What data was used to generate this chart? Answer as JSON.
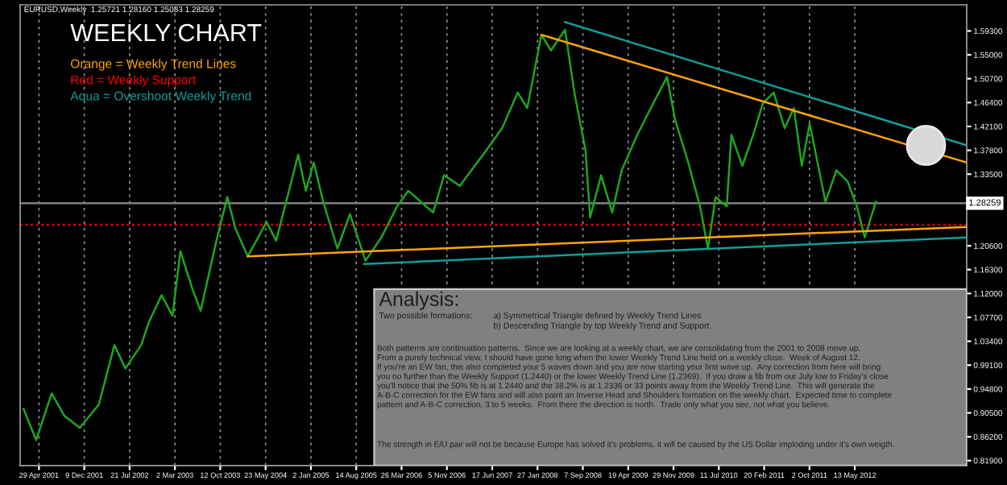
{
  "chart_data": {
    "type": "line",
    "title": "WEEKLY CHART",
    "annotations": [
      "EURUSD,Weekly  1.25721 1.28160 1.25083 1.28259",
      "Orange = Weekly Trend Lines",
      "Red = Weekly Support",
      "Aqua = Overshoot Weekly Trend",
      "Analysis:",
      "Two possible formations:",
      "a) Symmetrical Triangle defined by Weekly Trend Lines\nb) Descending Triangle by top Weekly Trend and Support",
      "Both patterns are continuation patterns.  Since we are looking at a weekly chart, we are consolidating from the 2001 to 2008 move up.\nFrom a purely technical view, I should have gone long when the lower Weekly Trend Line held on a weekly close.  Week of August 12.\nIf you're an EW fan, this also completed your 5 waves down and you are now starting your first wave up.  Any correction from here will bring\nyou no further than the Weekly Support (1.2440) or the lower Weekly Trend Line (1.2369).  If you draw a fib from our July low to Friday's close\nyou'll notice that the 50% fib is at 1.2440 and the 38.2% is at 1.2336 or 33 points away from the Weekly Trend Line.  This will generate the\nA-B-C correction for the EW fans and will also paint an Inverse Head and Shoulders formation on the weekly chart.  Expected time to complete\npattern and A-B-C correction, 3 to 5 weeks.  From there the direction is north.  Trade only what you see, not what you believe.",
      "The strength in E/U pair will not be because Europe has solved it's problems, it will be caused by the US Dollar imploding under it's own weigth."
    ],
    "series": [
      {
        "color": "#1fa51f",
        "x": [
          "2001-02-12",
          "2001-04-15",
          "2001-07-01",
          "2001-09-01",
          "2001-11-17",
          "2002-02-19",
          "2002-05-07",
          "2002-06-30",
          "2002-09-16",
          "2002-10-25",
          "2002-12-26",
          "2003-02-18",
          "2003-03-29",
          "2003-05-30",
          "2003-07-07",
          "2003-09-23",
          "2003-11-16",
          "2003-12-25",
          "2004-02-25",
          "2004-05-28",
          "2004-07-14",
          "2004-09-22",
          "2004-10-31",
          "2004-12-08",
          "2005-01-16",
          "2005-03-04",
          "2005-05-13",
          "2005-07-14",
          "2005-09-29",
          "2005-12-16",
          "2006-03-04",
          "2006-04-28",
          "2006-08-29",
          "2006-10-22",
          "2007-01-08",
          "2007-05-19",
          "2007-08-05",
          "2007-10-21",
          "2007-12-07",
          "2008-02-15",
          "2008-04-02",
          "2008-06-11",
          "2008-07-27",
          "2008-09-20",
          "2008-10-13",
          "2008-12-06",
          "2009-01-30",
          "2009-03-18",
          "2009-06-03",
          "2009-08-20",
          "2009-10-28",
          "2009-12-06",
          "2010-02-06",
          "2010-04-09",
          "2010-05-18",
          "2010-06-25",
          "2010-08-19",
          "2010-09-11",
          "2010-11-04",
          "2010-12-28",
          "2011-02-13",
          "2011-04-08",
          "2011-06-01",
          "2011-07-17",
          "2011-08-25",
          "2011-10-03",
          "2011-12-20",
          "2012-02-12",
          "2012-04-07",
          "2012-05-23",
          "2012-07-01",
          "2012-08-25"
        ],
        "values": [
          0.912,
          0.856,
          0.94,
          0.9,
          0.878,
          0.92,
          1.027,
          0.985,
          1.027,
          1.069,
          1.117,
          1.08,
          1.196,
          1.125,
          1.089,
          1.215,
          1.294,
          1.238,
          1.187,
          1.249,
          1.215,
          1.314,
          1.37,
          1.305,
          1.356,
          1.285,
          1.201,
          1.263,
          1.179,
          1.221,
          1.277,
          1.305,
          1.266,
          1.333,
          1.314,
          1.378,
          1.418,
          1.482,
          1.454,
          1.586,
          1.558,
          1.595,
          1.482,
          1.378,
          1.257,
          1.333,
          1.266,
          1.342,
          1.406,
          1.462,
          1.51,
          1.434,
          1.361,
          1.277,
          1.201,
          1.294,
          1.277,
          1.406,
          1.35,
          1.406,
          1.462,
          1.482,
          1.418,
          1.454,
          1.35,
          1.426,
          1.285,
          1.342,
          1.322,
          1.277,
          1.221,
          1.285
        ]
      },
      {
        "color": "#ffa500",
        "x": [
          "2008-02-15",
          "2013-11-17"
        ],
        "values": [
          1.586,
          1.356
        ]
      },
      {
        "color": "#ffa500",
        "x": [
          "2004-02-25",
          "2013-11-17"
        ],
        "values": [
          1.187,
          1.24
        ]
      },
      {
        "color": "#139c9c",
        "x": [
          "2008-06-11",
          "2013-11-17"
        ],
        "values": [
          1.609,
          1.387
        ]
      },
      {
        "color": "#139c9c",
        "x": [
          "2005-09-22",
          "2013-11-17"
        ],
        "values": [
          1.173,
          1.221
        ]
      }
    ],
    "ref_lines": [
      {
        "axis": "y",
        "value": 1.28259,
        "label": "1.28259",
        "color": "#808080",
        "line_style": "solid"
      },
      {
        "axis": "y",
        "value": 1.244,
        "color": "#ff0000",
        "line_style": "dotted"
      }
    ],
    "xlim": [
      "2001-01-26",
      "2013-11-17"
    ],
    "xticks": [
      {
        "value": "2001-04-29",
        "label": "29 Apr 2001"
      },
      {
        "value": "2001-12-09",
        "label": "9 Dec 2001"
      },
      {
        "value": "2002-07-21",
        "label": "21 Jul 2002"
      },
      {
        "value": "2003-03-02",
        "label": "2 Mar 2003"
      },
      {
        "value": "2003-10-12",
        "label": "12 Oct 2003"
      },
      {
        "value": "2004-05-23",
        "label": "23 May 2004"
      },
      {
        "value": "2005-01-02",
        "label": "2 Jan 2005"
      },
      {
        "value": "2005-08-14",
        "label": "14 Aug 2005"
      },
      {
        "value": "2006-03-26",
        "label": "26 Mar 2006"
      },
      {
        "value": "2006-11-05",
        "label": "5 Nov 2006"
      },
      {
        "value": "2007-06-17",
        "label": "17 Jun 2007"
      },
      {
        "value": "2008-01-27",
        "label": "27 Jan 2008"
      },
      {
        "value": "2008-09-07",
        "label": "7 Sep 2008"
      },
      {
        "value": "2009-04-19",
        "label": "19 Apr 2009"
      },
      {
        "value": "2009-11-29",
        "label": "29 Nov 2009"
      },
      {
        "value": "2010-07-11",
        "label": "11 Jul 2010"
      },
      {
        "value": "2011-02-20",
        "label": "20 Feb 2011"
      },
      {
        "value": "2011-10-02",
        "label": "2 Oct 2011"
      },
      {
        "value": "2012-05-13",
        "label": "13 May 2012"
      }
    ],
    "ylim": [
      0.81,
      1.64
    ],
    "yticks": [
      {
        "value": 0.819,
        "label": "0.81900"
      },
      {
        "value": 0.862,
        "label": "0.86200"
      },
      {
        "value": 0.905,
        "label": "0.90500"
      },
      {
        "value": 0.948,
        "label": "0.94800"
      },
      {
        "value": 0.991,
        "label": "0.99100"
      },
      {
        "value": 1.034,
        "label": "1.03400"
      },
      {
        "value": 1.077,
        "label": "1.07700"
      },
      {
        "value": 1.12,
        "label": "1.12000"
      },
      {
        "value": 1.163,
        "label": "1.16300"
      },
      {
        "value": 1.206,
        "label": "1.20600"
      },
      {
        "value": 1.335,
        "label": "1.33500"
      },
      {
        "value": 1.378,
        "label": "1.37800"
      },
      {
        "value": 1.421,
        "label": "1.42100"
      },
      {
        "value": 1.464,
        "label": "1.46400"
      },
      {
        "value": 1.507,
        "label": "1.50700"
      },
      {
        "value": 1.55,
        "label": "1.55000"
      },
      {
        "value": 1.593,
        "label": "1.59300"
      }
    ],
    "grid": "x",
    "marker": "none",
    "line_style": "solid",
    "legend": false
  }
}
